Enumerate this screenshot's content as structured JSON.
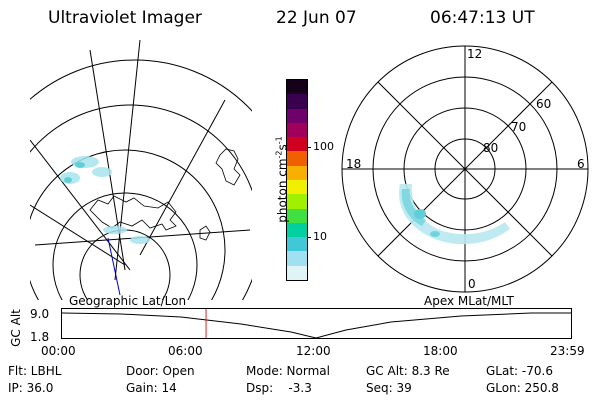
{
  "header": {
    "instrument": "Ultraviolet Imager",
    "date": "22 Jun 07",
    "time": "06:47:13 UT"
  },
  "colorbar": {
    "unit_label": "photon cm",
    "unit_sup1": "-2",
    "unit_s": "s",
    "unit_sup2": "-1",
    "ticks": [
      "100",
      "10"
    ],
    "colors": [
      "#1a0020",
      "#3a0050",
      "#6a006a",
      "#a0005a",
      "#d00020",
      "#f06000",
      "#f8b000",
      "#f0f000",
      "#a0f000",
      "#40e040",
      "#00d0a0",
      "#40c8d8",
      "#a0e0f0",
      "#e0f4f8"
    ]
  },
  "left_map": {
    "projection_label": "Geographic Lat/Lon"
  },
  "right_map": {
    "projection_label": "Apex  MLat/MLT",
    "mlt_labels": {
      "top": "12",
      "left": "18",
      "right": "6",
      "bottom": "0"
    },
    "lat_labels": [
      "60",
      "70",
      "80"
    ]
  },
  "altitude_plot": {
    "ylabel": "GC Alt",
    "y_ticks": [
      "9.0",
      "1.8"
    ],
    "x_ticks": [
      "00:00",
      "06:00",
      "12:00",
      "18:00",
      "23:59"
    ],
    "marker_time_fraction": 0.283
  },
  "footer": {
    "row1": [
      {
        "label": "Flt: LBHL"
      },
      {
        "label": "Door: Open"
      },
      {
        "label": "Mode: Normal"
      },
      {
        "label": "GC Alt: 8.3 Re"
      },
      {
        "label": "GLat: -70.6"
      }
    ],
    "row2": [
      {
        "label": "IP: 36.0"
      },
      {
        "label": "Gain: 14"
      },
      {
        "label": "Dsp:    -3.3"
      },
      {
        "label": "Seq: 39"
      },
      {
        "label": "GLon: 250.8"
      }
    ]
  }
}
